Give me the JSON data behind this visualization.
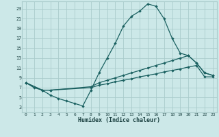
{
  "xlabel": "Humidex (Indice chaleur)",
  "bg_color": "#cce8e8",
  "line_color": "#1a6060",
  "grid_color": "#aacccc",
  "xlim": [
    -0.5,
    23.5
  ],
  "ylim": [
    2,
    24.5
  ],
  "xticks": [
    0,
    1,
    2,
    3,
    4,
    5,
    6,
    7,
    8,
    9,
    10,
    11,
    12,
    13,
    14,
    15,
    16,
    17,
    18,
    19,
    20,
    21,
    22,
    23
  ],
  "yticks": [
    3,
    5,
    7,
    9,
    11,
    13,
    15,
    17,
    19,
    21,
    23
  ],
  "curve1_x": [
    0,
    1,
    2,
    3,
    4,
    5,
    6,
    7,
    8,
    9,
    10,
    11,
    12,
    13,
    14,
    15,
    16,
    17,
    18,
    19,
    20,
    21,
    22,
    23
  ],
  "curve1_y": [
    8.0,
    7.0,
    6.5,
    5.5,
    4.8,
    4.3,
    3.8,
    3.3,
    6.5,
    10.0,
    13.0,
    16.0,
    19.5,
    21.5,
    22.5,
    24.0,
    23.5,
    21.0,
    17.0,
    14.0,
    13.5,
    12.0,
    10.0,
    9.5
  ],
  "curve2_x": [
    0,
    2,
    3,
    8,
    9,
    10,
    11,
    12,
    13,
    14,
    15,
    16,
    17,
    18,
    19,
    20,
    21,
    22,
    23
  ],
  "curve2_y": [
    8.0,
    6.5,
    6.5,
    7.2,
    8.0,
    8.5,
    9.0,
    9.5,
    10.0,
    10.5,
    11.0,
    11.5,
    12.0,
    12.5,
    13.0,
    13.5,
    12.0,
    10.0,
    9.5
  ],
  "curve3_x": [
    0,
    2,
    3,
    8,
    9,
    10,
    11,
    12,
    13,
    14,
    15,
    16,
    17,
    18,
    19,
    20,
    21,
    22,
    23
  ],
  "curve3_y": [
    8.0,
    6.5,
    6.5,
    7.0,
    7.5,
    7.8,
    8.2,
    8.5,
    8.8,
    9.2,
    9.5,
    9.8,
    10.2,
    10.5,
    10.8,
    11.2,
    11.5,
    9.2,
    9.2
  ]
}
